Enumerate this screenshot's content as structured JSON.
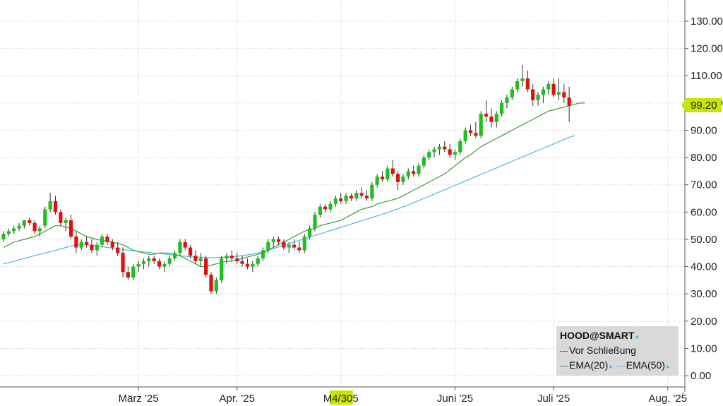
{
  "chart_data": {
    "type": "candlestick",
    "ticker_label": "HOOD@SMART",
    "y_ticks": [
      "130.00",
      "120.00",
      "110.00",
      "100.00",
      "90.00",
      "80.00",
      "70.00",
      "60.00",
      "50.00",
      "40.00",
      "30.00",
      "20.00",
      "10.00",
      "0.00"
    ],
    "ylim": [
      -4,
      135
    ],
    "x_ticks": [
      {
        "label": "März '25",
        "i": 26
      },
      {
        "label": "Apr. '25",
        "i": 45
      },
      {
        "label": "Juni '25",
        "i": 87
      },
      {
        "label": "Juli '25",
        "i": 106
      },
      {
        "label": "Aug. '25",
        "i": 128
      }
    ],
    "x_highlight": {
      "label_a": "M",
      "label_b": "4/30",
      "label_c": "5",
      "i": 65
    },
    "last_price": "99.20",
    "colors": {
      "up": "#1fbf1f",
      "down": "#e01010",
      "ema20": "#3b9b3b",
      "ema50": "#4cb7e8",
      "highlight": "#c8e600"
    },
    "legend": {
      "title": "HOOD@SMART",
      "close_label": "Vor Schließung",
      "ema20_label": "EMA(20)",
      "ema50_label": "EMA(50)"
    },
    "ema20": [
      47,
      48,
      49,
      49.5,
      50,
      50.5,
      51,
      52,
      53,
      54,
      55,
      55,
      54.5,
      54,
      53,
      52,
      51,
      50.5,
      50,
      49.5,
      49.5,
      49,
      48.5,
      48,
      47,
      46,
      45.5,
      45,
      44.5,
      44.5,
      45,
      45,
      45,
      44.5,
      44,
      43,
      42,
      41,
      40,
      40,
      40.5,
      41,
      41.5,
      42,
      42,
      42.5,
      43,
      43.5,
      44,
      44.5,
      45,
      46,
      47,
      48,
      49,
      50,
      51,
      52,
      53,
      53.5,
      54,
      55,
      55.5,
      56,
      56.5,
      57,
      58,
      59,
      60,
      61,
      61.5,
      62,
      63,
      63.5,
      64,
      64.5,
      65,
      66,
      67,
      68,
      69,
      70,
      71,
      72,
      73,
      74,
      75.5,
      77,
      78.5,
      80,
      81,
      82.5,
      84,
      85,
      86,
      87,
      88,
      89,
      90,
      91,
      92,
      93,
      94,
      95,
      96,
      97,
      97.5,
      98,
      98.5,
      99,
      99.5,
      100,
      100
    ],
    "ema50": [
      41,
      41.5,
      42,
      42.5,
      43,
      43.5,
      44,
      44.5,
      45,
      45.5,
      46,
      46.5,
      47,
      47.5,
      48,
      48,
      48,
      47.8,
      47.5,
      47.3,
      47,
      46.8,
      46.5,
      46.3,
      46,
      45.8,
      45.6,
      45.4,
      45.2,
      45,
      44.8,
      44.6,
      44.4,
      44.2,
      44,
      43.8,
      43.6,
      43.5,
      43.4,
      43.3,
      43.3,
      43.3,
      43.4,
      43.5,
      43.6,
      43.8,
      44,
      44.3,
      44.6,
      45,
      45.5,
      46,
      46.6,
      47.2,
      47.8,
      48.4,
      49,
      49.6,
      50.2,
      50.8,
      51.4,
      52,
      52.6,
      53.2,
      53.8,
      54.4,
      55,
      55.6,
      56.2,
      56.8,
      57.4,
      58,
      58.6,
      59.2,
      59.8,
      60.5,
      61.2,
      61.9,
      62.6,
      63.4,
      64.2,
      65,
      65.8,
      66.6,
      67.4,
      68.2,
      69,
      69.8,
      70.6,
      71.4,
      72.2,
      73,
      73.8,
      74.6,
      75.4,
      76.2,
      77,
      77.8,
      78.6,
      79.4,
      80.2,
      81,
      81.8,
      82.6,
      83.4,
      84.2,
      85,
      85.8,
      86.6,
      87.4,
      88
    ],
    "ohlc": [
      [
        50,
        53,
        49,
        52
      ],
      [
        52,
        54,
        51,
        53
      ],
      [
        53,
        55,
        52,
        54
      ],
      [
        54,
        56,
        53,
        55
      ],
      [
        55,
        57,
        54,
        57
      ],
      [
        57,
        58,
        55,
        56
      ],
      [
        56,
        57,
        52,
        53
      ],
      [
        53,
        55,
        51,
        54
      ],
      [
        55,
        62,
        54,
        61
      ],
      [
        61,
        67,
        60,
        64
      ],
      [
        64,
        66,
        59,
        60
      ],
      [
        60,
        61,
        55,
        56
      ],
      [
        56,
        58,
        53,
        57
      ],
      [
        57,
        59,
        50,
        51
      ],
      [
        51,
        53,
        45,
        47
      ],
      [
        47,
        50,
        46,
        49
      ],
      [
        49,
        51,
        47,
        48
      ],
      [
        48,
        50,
        45,
        46
      ],
      [
        46,
        49,
        44,
        48
      ],
      [
        48,
        52,
        47,
        51
      ],
      [
        51,
        52,
        48,
        49
      ],
      [
        49,
        50,
        46,
        47
      ],
      [
        47,
        49,
        44,
        45
      ],
      [
        45,
        47,
        36,
        38
      ],
      [
        38,
        40,
        35,
        36
      ],
      [
        36,
        41,
        35,
        40
      ],
      [
        40,
        42,
        38,
        41
      ],
      [
        41,
        43,
        39,
        42
      ],
      [
        42,
        44,
        40,
        43
      ],
      [
        43,
        44,
        41,
        42
      ],
      [
        42,
        43,
        39,
        40
      ],
      [
        40,
        42,
        38,
        41
      ],
      [
        41,
        44,
        40,
        43
      ],
      [
        43,
        46,
        42,
        45
      ],
      [
        45,
        50,
        44,
        49
      ],
      [
        49,
        50,
        46,
        47
      ],
      [
        47,
        48,
        43,
        44
      ],
      [
        44,
        46,
        41,
        42
      ],
      [
        42,
        45,
        40,
        43
      ],
      [
        43,
        44,
        36,
        37
      ],
      [
        37,
        38,
        30,
        31
      ],
      [
        31,
        36,
        30,
        35
      ],
      [
        35,
        44,
        34,
        43
      ],
      [
        43,
        45,
        41,
        44
      ],
      [
        44,
        46,
        42,
        43
      ],
      [
        43,
        45,
        41,
        42
      ],
      [
        42,
        44,
        40,
        41
      ],
      [
        41,
        43,
        39,
        40
      ],
      [
        40,
        42,
        38,
        41
      ],
      [
        41,
        44,
        40,
        43
      ],
      [
        43,
        47,
        42,
        46
      ],
      [
        46,
        50,
        45,
        49
      ],
      [
        49,
        51,
        47,
        50
      ],
      [
        50,
        51,
        48,
        49
      ],
      [
        49,
        50,
        46,
        47
      ],
      [
        47,
        49,
        45,
        48
      ],
      [
        48,
        50,
        46,
        47
      ],
      [
        47,
        49,
        45,
        46
      ],
      [
        46,
        52,
        45,
        51
      ],
      [
        51,
        55,
        50,
        54
      ],
      [
        54,
        60,
        53,
        59
      ],
      [
        59,
        63,
        58,
        62
      ],
      [
        62,
        63,
        60,
        61
      ],
      [
        61,
        64,
        60,
        63
      ],
      [
        63,
        66,
        62,
        65
      ],
      [
        65,
        67,
        63,
        64
      ],
      [
        64,
        67,
        63,
        66
      ],
      [
        66,
        67,
        64,
        65
      ],
      [
        65,
        68,
        64,
        67
      ],
      [
        67,
        69,
        65,
        66
      ],
      [
        66,
        68,
        64,
        65
      ],
      [
        65,
        71,
        64,
        70
      ],
      [
        70,
        74,
        69,
        73
      ],
      [
        73,
        75,
        71,
        72
      ],
      [
        72,
        77,
        71,
        76
      ],
      [
        76,
        79,
        73,
        74
      ],
      [
        74,
        75,
        68,
        71
      ],
      [
        71,
        74,
        70,
        73
      ],
      [
        73,
        76,
        72,
        75
      ],
      [
        75,
        77,
        73,
        74
      ],
      [
        74,
        78,
        73,
        77
      ],
      [
        77,
        81,
        76,
        80
      ],
      [
        80,
        83,
        79,
        82
      ],
      [
        82,
        84,
        80,
        83
      ],
      [
        83,
        85,
        81,
        84
      ],
      [
        84,
        86,
        82,
        83
      ],
      [
        83,
        85,
        80,
        81
      ],
      [
        81,
        83,
        79,
        82
      ],
      [
        82,
        87,
        81,
        86
      ],
      [
        86,
        91,
        85,
        90
      ],
      [
        90,
        92,
        88,
        89
      ],
      [
        89,
        93,
        87,
        88
      ],
      [
        88,
        97,
        87,
        96
      ],
      [
        96,
        101,
        93,
        95
      ],
      [
        95,
        98,
        91,
        93
      ],
      [
        93,
        97,
        91,
        96
      ],
      [
        96,
        101,
        95,
        100
      ],
      [
        100,
        103,
        98,
        102
      ],
      [
        102,
        106,
        101,
        105
      ],
      [
        105,
        109,
        104,
        108
      ],
      [
        108,
        114,
        106,
        109
      ],
      [
        109,
        112,
        104,
        105
      ],
      [
        105,
        107,
        99,
        101
      ],
      [
        101,
        104,
        99,
        103
      ],
      [
        103,
        106,
        100,
        105
      ],
      [
        105,
        108,
        103,
        107
      ],
      [
        107,
        109,
        102,
        103
      ],
      [
        103,
        109,
        101,
        104
      ],
      [
        104,
        107,
        100,
        102
      ],
      [
        102,
        106,
        93,
        99
      ]
    ]
  }
}
